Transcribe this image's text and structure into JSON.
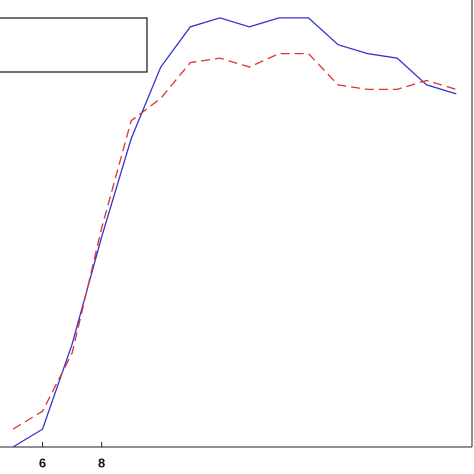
{
  "chart_data": {
    "type": "line",
    "x": [
      5,
      6,
      7,
      8,
      9,
      10,
      11,
      12,
      13,
      14,
      15,
      16,
      17,
      18,
      19,
      20
    ],
    "series": [
      {
        "color": "#3333cc",
        "dash": false,
        "values": [
          0,
          4,
          23,
          47,
          69,
          85,
          94,
          96,
          94,
          96,
          96,
          90,
          88,
          87,
          81,
          79
        ]
      },
      {
        "color": "#dd3333",
        "dash": true,
        "values": [
          4,
          8,
          21,
          49,
          73,
          78,
          86,
          87,
          85,
          88,
          88,
          81,
          80,
          80,
          82,
          80
        ]
      }
    ],
    "xlim": [
      4.56,
      20.6
    ],
    "xticks": [
      6,
      8
    ],
    "ylim": [
      0,
      100
    ]
  }
}
